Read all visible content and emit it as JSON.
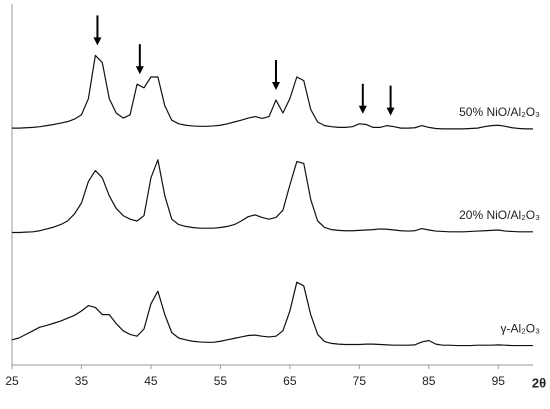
{
  "chart_data": {
    "type": "line",
    "x_label": "2θ",
    "x": [
      25,
      26,
      27,
      28,
      29,
      30,
      31,
      32,
      33,
      34,
      35,
      36,
      37,
      38,
      39,
      40,
      41,
      42,
      43,
      44,
      45,
      46,
      47,
      48,
      49,
      50,
      51,
      52,
      53,
      54,
      55,
      56,
      57,
      58,
      59,
      60,
      61,
      62,
      63,
      64,
      65,
      66,
      67,
      68,
      69,
      70,
      71,
      72,
      73,
      74,
      75,
      76,
      77,
      78,
      79,
      80,
      81,
      82,
      83,
      84,
      85,
      86,
      87,
      88,
      89,
      90,
      91,
      92,
      93,
      94,
      95,
      96,
      97,
      98,
      99,
      100
    ],
    "series": [
      {
        "name": "50% NiO/Al₂O₃",
        "color": "#111111",
        "values": [
          65.8,
          65.8,
          65.9,
          66,
          66.2,
          66.5,
          66.8,
          67.2,
          67.6,
          68.3,
          69.5,
          74,
          86,
          84,
          74,
          70,
          68.6,
          69.5,
          78,
          77,
          80,
          80,
          72,
          68,
          67,
          66.6,
          66.4,
          66.3,
          66.3,
          66.4,
          66.6,
          67,
          67.5,
          68,
          68.6,
          69,
          68.5,
          69,
          73.6,
          70,
          74,
          80,
          79,
          71,
          67.5,
          66.5,
          66.2,
          66,
          66,
          66.2,
          67,
          66.8,
          66,
          66,
          66.5,
          66.2,
          65.8,
          65.8,
          65.9,
          66.5,
          66,
          65.7,
          65.6,
          65.6,
          65.6,
          65.6,
          65.7,
          65.8,
          66.2,
          66.5,
          66.6,
          66.3,
          65.9,
          65.7,
          65.6,
          65.6
        ]
      },
      {
        "name": "20% NiO/Al₂O₃",
        "color": "#111111",
        "values": [
          36.8,
          36.8,
          36.9,
          37,
          37.3,
          37.8,
          38.3,
          39,
          40,
          42,
          45,
          51,
          54,
          52,
          47,
          43.5,
          41.5,
          40.5,
          40,
          41.5,
          52,
          57,
          47,
          40.5,
          39,
          38.5,
          38.2,
          38,
          38,
          38,
          38.2,
          38.5,
          39,
          40,
          41.2,
          41.7,
          41,
          40.5,
          41,
          43,
          50,
          56.5,
          56,
          46,
          40,
          38.2,
          37.6,
          37.4,
          37.3,
          37.3,
          37.4,
          37.5,
          37.6,
          37.8,
          37.7,
          37.5,
          37.3,
          37.2,
          37.3,
          37.9,
          37.5,
          37.2,
          37.1,
          37,
          37,
          37,
          37.1,
          37.2,
          37.3,
          37.4,
          37.5,
          37.2,
          37.1,
          37,
          37,
          37
        ]
      },
      {
        "name": "γ-Al₂O₃",
        "color": "#111111",
        "values": [
          7,
          7.5,
          8.5,
          9.5,
          10.5,
          11,
          11.6,
          12.2,
          13,
          13.8,
          15,
          16.5,
          16,
          14,
          14,
          11.5,
          9.5,
          8.5,
          8,
          10,
          17,
          20.5,
          14,
          9,
          7.5,
          7,
          6.6,
          6.4,
          6.3,
          6.3,
          6.6,
          7,
          7.4,
          7.8,
          8.2,
          8.3,
          8,
          7.8,
          8,
          9.5,
          15,
          23,
          22,
          14,
          8.5,
          6.5,
          6,
          5.8,
          5.7,
          5.7,
          5.7,
          5.8,
          5.8,
          5.7,
          5.6,
          5.5,
          5.5,
          5.5,
          5.6,
          6.4,
          6.8,
          5.8,
          5.5,
          5.5,
          5.4,
          5.4,
          5.4,
          5.5,
          5.5,
          5.5,
          5.6,
          5.5,
          5.4,
          5.4,
          5.4,
          5.4
        ]
      }
    ],
    "arrows": [
      37.3,
      43.4,
      63.0,
      75.5,
      79.5
    ],
    "xlim": [
      25,
      100
    ],
    "xticks": [
      25,
      35,
      45,
      55,
      65,
      75,
      85,
      95
    ],
    "ylim": [
      0,
      100
    ]
  }
}
